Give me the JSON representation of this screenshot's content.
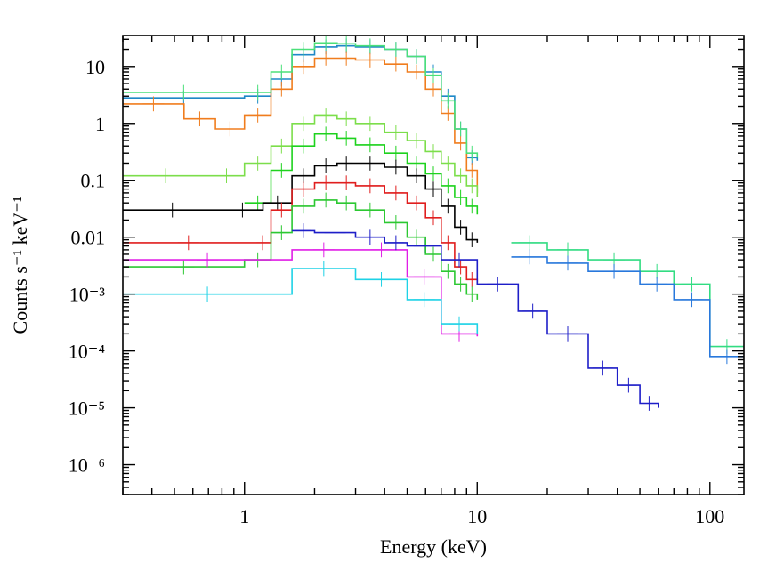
{
  "chart_data": {
    "type": "line",
    "title": "",
    "xlabel": "Energy (keV)",
    "ylabel": "Counts s⁻¹ keV⁻¹",
    "xscale": "log",
    "yscale": "log",
    "xlim": [
      0.3,
      140
    ],
    "ylim": [
      3e-07,
      35
    ],
    "legend": "none",
    "grid": false,
    "x_ticks": [
      {
        "value": 1,
        "label": "1"
      },
      {
        "value": 10,
        "label": "10"
      },
      {
        "value": 100,
        "label": "100"
      }
    ],
    "y_ticks": [
      {
        "value": 10,
        "label": "10"
      },
      {
        "value": 1,
        "label": "1"
      },
      {
        "value": 0.1,
        "label": "0.1"
      },
      {
        "value": 0.01,
        "label": "0.01"
      },
      {
        "value": 0.001,
        "label": "10⁻³"
      },
      {
        "value": 0.0001,
        "label": "10⁻⁴"
      },
      {
        "value": 1e-05,
        "label": "10⁻⁵"
      },
      {
        "value": 1e-06,
        "label": "10⁻⁶"
      }
    ],
    "series": [
      {
        "name": "blue",
        "color": "#1e88c8",
        "x": [
          0.3,
          1.0,
          1.3,
          1.6,
          2,
          2.5,
          3,
          4,
          5,
          6,
          7,
          8,
          9,
          10
        ],
        "y": [
          2.8,
          3.0,
          6,
          16,
          22,
          23,
          22,
          20,
          15,
          8,
          3,
          0.8,
          0.25,
          0.22
        ]
      },
      {
        "name": "orange",
        "color": "#f07d1e",
        "x": [
          0.3,
          0.55,
          0.75,
          1.0,
          1.3,
          1.6,
          2,
          2.5,
          3,
          4,
          5,
          6,
          7,
          8,
          9,
          10
        ],
        "y": [
          2.2,
          1.2,
          0.8,
          1.4,
          4,
          10,
          14,
          14,
          13,
          11,
          8,
          4,
          1.5,
          0.45,
          0.15,
          0.06
        ]
      },
      {
        "name": "light-green",
        "color": "#4be07a",
        "x": [
          0.3,
          1.0,
          1.3,
          1.6,
          2,
          2.5,
          3,
          4,
          5,
          6,
          7,
          8,
          9,
          10
        ],
        "y": [
          3.5,
          3.5,
          8,
          20,
          26,
          25,
          23,
          20,
          15,
          7,
          2.5,
          0.8,
          0.3,
          0.25
        ]
      },
      {
        "name": "lime",
        "color": "#7cde4b",
        "x": [
          0.3,
          0.7,
          1.0,
          1.3,
          1.6,
          2,
          2.5,
          3,
          4,
          5,
          6,
          7,
          8,
          9,
          10
        ],
        "y": [
          0.12,
          0.12,
          0.2,
          0.4,
          1.0,
          1.4,
          1.2,
          1.0,
          0.7,
          0.5,
          0.32,
          0.2,
          0.12,
          0.08,
          0.05
        ]
      },
      {
        "name": "green",
        "color": "#1ed21e",
        "x": [
          1.0,
          1.3,
          1.6,
          2,
          2.5,
          3,
          4,
          5,
          6,
          7,
          8,
          9,
          10
        ],
        "y": [
          0.04,
          0.15,
          0.4,
          0.65,
          0.55,
          0.42,
          0.3,
          0.2,
          0.13,
          0.08,
          0.05,
          0.035,
          0.025
        ]
      },
      {
        "name": "black",
        "color": "#000000",
        "x": [
          0.3,
          0.8,
          1.2,
          1.6,
          2,
          2.5,
          3,
          4,
          5,
          6,
          7,
          8,
          9,
          10
        ],
        "y": [
          0.03,
          0.03,
          0.04,
          0.12,
          0.18,
          0.2,
          0.2,
          0.17,
          0.12,
          0.07,
          0.035,
          0.015,
          0.009,
          0.008
        ]
      },
      {
        "name": "red",
        "color": "#e01e1e",
        "x": [
          0.3,
          1.1,
          1.3,
          1.6,
          2,
          2.5,
          3,
          4,
          5,
          6,
          7,
          8,
          9,
          10
        ],
        "y": [
          0.008,
          0.008,
          0.03,
          0.07,
          0.09,
          0.09,
          0.08,
          0.06,
          0.04,
          0.022,
          0.008,
          0.003,
          0.0018,
          0.0016
        ]
      },
      {
        "name": "green-lower",
        "color": "#2cc832",
        "x": [
          0.3,
          1.0,
          1.3,
          1.6,
          2,
          2.5,
          3,
          4,
          5,
          6,
          7,
          8,
          9,
          10
        ],
        "y": [
          0.003,
          0.004,
          0.012,
          0.035,
          0.045,
          0.04,
          0.03,
          0.018,
          0.01,
          0.005,
          0.0025,
          0.0015,
          0.001,
          0.0008
        ]
      },
      {
        "name": "magenta",
        "color": "#e01ee6",
        "x": [
          0.3,
          1.6,
          3,
          5,
          7,
          10
        ],
        "y": [
          0.004,
          0.006,
          0.006,
          0.002,
          0.0002,
          0.00018
        ]
      },
      {
        "name": "cyan",
        "color": "#1ed2e6",
        "x": [
          0.3,
          1.6,
          3,
          5,
          7,
          10
        ],
        "y": [
          0.001,
          0.0028,
          0.0018,
          0.0008,
          0.0003,
          0.0002
        ]
      },
      {
        "name": "navy",
        "color": "#1e1ec8",
        "x": [
          1.6,
          2,
          3,
          4,
          5,
          7,
          10,
          15,
          20,
          30,
          40,
          50,
          60
        ],
        "y": [
          0.013,
          0.012,
          0.01,
          0.008,
          0.007,
          0.004,
          0.0015,
          0.0005,
          0.0002,
          5e-05,
          2.5e-05,
          1.2e-05,
          1e-05
        ]
      },
      {
        "name": "hard-green",
        "color": "#32dc82",
        "x": [
          14,
          20,
          30,
          50,
          70,
          100,
          140
        ],
        "y": [
          0.008,
          0.006,
          0.004,
          0.0025,
          0.0015,
          0.00012,
          0.00012
        ]
      },
      {
        "name": "hard-blue",
        "color": "#2878dc",
        "x": [
          14,
          20,
          30,
          50,
          70,
          100,
          140
        ],
        "y": [
          0.0045,
          0.0035,
          0.0025,
          0.0015,
          0.0008,
          8e-05,
          8e-05
        ]
      }
    ]
  }
}
